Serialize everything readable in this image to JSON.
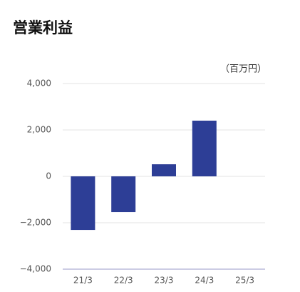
{
  "chart_data": {
    "type": "bar",
    "title": "営業利益",
    "unit_label": "（百万円）",
    "categories": [
      "21/3",
      "22/3",
      "23/3",
      "24/3",
      "25/3"
    ],
    "values": [
      -2310,
      -1540,
      520,
      2400,
      null
    ],
    "color": "#2d3e96",
    "ylim": [
      -4000,
      4000
    ],
    "yticks": [
      {
        "value": -4000,
        "label": "−4,000"
      },
      {
        "value": -2000,
        "label": "−2,000"
      },
      0,
      {
        "value": 2000,
        "label": "2,000"
      },
      {
        "value": 4000,
        "label": "4,000"
      }
    ],
    "grid": true
  }
}
